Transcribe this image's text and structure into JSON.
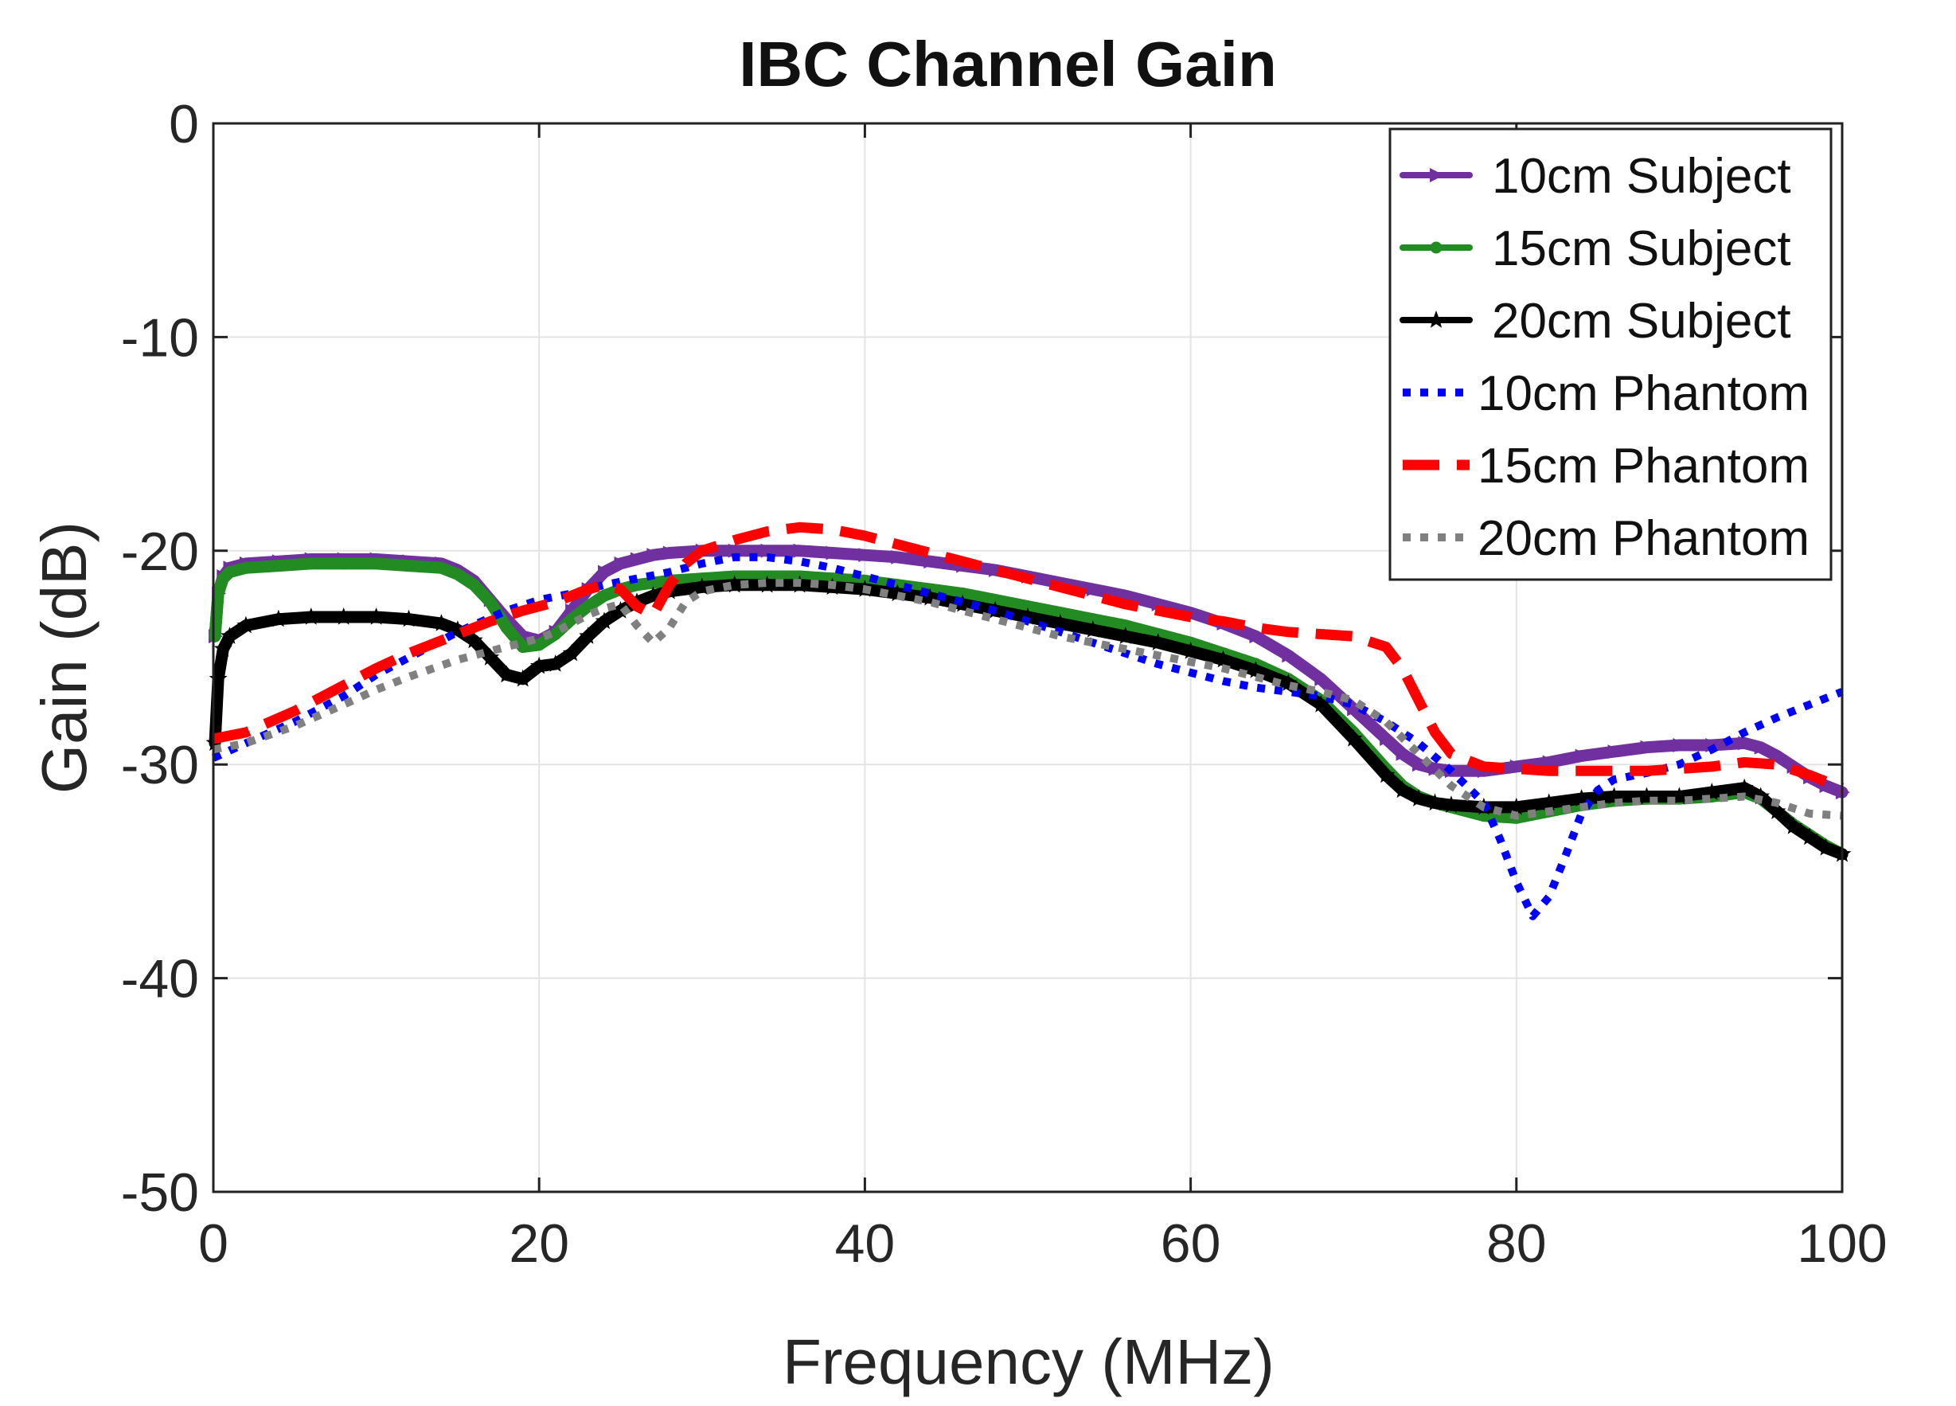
{
  "chart_data": {
    "type": "line",
    "title": "IBC Channel Gain",
    "xlabel": "Frequency (MHz)",
    "ylabel": "Gain (dB)",
    "xlim": [
      0,
      100
    ],
    "ylim": [
      -50,
      0
    ],
    "xticks": [
      0,
      20,
      40,
      60,
      80,
      100
    ],
    "yticks": [
      0,
      -10,
      -20,
      -30,
      -40,
      -50
    ],
    "grid": true,
    "legend_position": "top-right",
    "series": [
      {
        "name": "10cm Subject",
        "color": "#7030A0",
        "style": "solid",
        "marker": "triangle-right",
        "x": [
          0.1,
          0.3,
          0.6,
          1,
          2,
          4,
          6,
          8,
          10,
          12,
          14,
          15,
          16,
          17,
          18,
          19,
          20,
          21,
          22,
          23,
          24,
          25,
          26,
          27,
          28,
          30,
          32,
          34,
          36,
          38,
          40,
          42,
          44,
          46,
          48,
          50,
          52,
          54,
          56,
          58,
          60,
          62,
          64,
          66,
          68,
          70,
          72,
          73,
          74,
          75,
          76,
          78,
          80,
          82,
          84,
          86,
          88,
          90,
          92,
          94,
          95,
          96,
          97,
          98,
          99,
          100
        ],
        "y": [
          -24,
          -22,
          -21.2,
          -20.8,
          -20.6,
          -20.5,
          -20.4,
          -20.4,
          -20.4,
          -20.5,
          -20.6,
          -20.9,
          -21.4,
          -22.3,
          -23.2,
          -24,
          -24.2,
          -23.8,
          -22.8,
          -21.8,
          -21,
          -20.6,
          -20.4,
          -20.2,
          -20.1,
          -20,
          -20,
          -20,
          -20,
          -20.1,
          -20.2,
          -20.3,
          -20.5,
          -20.7,
          -20.9,
          -21.2,
          -21.5,
          -21.8,
          -22.1,
          -22.5,
          -22.9,
          -23.4,
          -24,
          -24.9,
          -26,
          -27.4,
          -28.8,
          -29.5,
          -30,
          -30.2,
          -30.3,
          -30.3,
          -30.1,
          -29.9,
          -29.6,
          -29.4,
          -29.2,
          -29.1,
          -29.1,
          -29,
          -29.2,
          -29.6,
          -30.1,
          -30.6,
          -31,
          -31.3
        ]
      },
      {
        "name": "15cm Subject",
        "color": "#228B22",
        "style": "solid",
        "marker": "circle",
        "x": [
          0.1,
          0.3,
          0.6,
          1,
          2,
          4,
          6,
          8,
          10,
          12,
          14,
          15,
          16,
          17,
          18,
          19,
          20,
          21,
          22,
          23,
          24,
          25,
          26,
          27,
          28,
          30,
          32,
          34,
          36,
          38,
          40,
          42,
          44,
          46,
          48,
          50,
          52,
          54,
          56,
          58,
          60,
          62,
          64,
          66,
          68,
          70,
          72,
          73,
          74,
          75,
          76,
          78,
          80,
          82,
          84,
          86,
          88,
          90,
          92,
          94,
          95,
          96,
          97,
          98,
          99,
          100
        ],
        "y": [
          -24,
          -22,
          -21.3,
          -21,
          -20.8,
          -20.7,
          -20.6,
          -20.6,
          -20.6,
          -20.7,
          -20.8,
          -21.1,
          -21.6,
          -22.4,
          -23.6,
          -24.5,
          -24.4,
          -23.9,
          -23.2,
          -22.6,
          -22.1,
          -21.8,
          -21.6,
          -21.5,
          -21.4,
          -21.3,
          -21.2,
          -21.2,
          -21.2,
          -21.3,
          -21.4,
          -21.6,
          -21.8,
          -22,
          -22.3,
          -22.6,
          -22.9,
          -23.2,
          -23.5,
          -23.9,
          -24.3,
          -24.8,
          -25.3,
          -26,
          -27,
          -28.5,
          -30.2,
          -31,
          -31.5,
          -31.8,
          -32,
          -32.4,
          -32.5,
          -32.2,
          -31.9,
          -31.7,
          -31.6,
          -31.6,
          -31.5,
          -31.3,
          -31.6,
          -32.2,
          -32.8,
          -33.3,
          -33.8,
          -34.2
        ]
      },
      {
        "name": "20cm Subject",
        "color": "#000000",
        "style": "solid",
        "marker": "star",
        "x": [
          0.1,
          0.3,
          0.6,
          1,
          2,
          4,
          6,
          8,
          10,
          12,
          14,
          15,
          16,
          17,
          18,
          19,
          20,
          21,
          22,
          23,
          24,
          25,
          26,
          27,
          28,
          30,
          32,
          34,
          36,
          38,
          40,
          42,
          44,
          46,
          48,
          50,
          52,
          54,
          56,
          58,
          60,
          62,
          64,
          66,
          68,
          70,
          72,
          73,
          74,
          75,
          76,
          78,
          80,
          82,
          84,
          86,
          88,
          90,
          92,
          94,
          95,
          96,
          97,
          98,
          99,
          100
        ],
        "y": [
          -29,
          -26,
          -24.6,
          -24,
          -23.5,
          -23.2,
          -23.1,
          -23.1,
          -23.1,
          -23.2,
          -23.4,
          -23.7,
          -24.2,
          -25,
          -25.8,
          -26,
          -25.4,
          -25.3,
          -24.8,
          -24,
          -23.3,
          -22.8,
          -22.4,
          -22.1,
          -21.9,
          -21.7,
          -21.6,
          -21.6,
          -21.6,
          -21.7,
          -21.8,
          -22,
          -22.2,
          -22.5,
          -22.8,
          -23.1,
          -23.4,
          -23.7,
          -24,
          -24.3,
          -24.7,
          -25.1,
          -25.6,
          -26.2,
          -27.2,
          -28.8,
          -30.5,
          -31.2,
          -31.6,
          -31.8,
          -31.9,
          -32,
          -32,
          -31.8,
          -31.6,
          -31.5,
          -31.5,
          -31.5,
          -31.3,
          -31.1,
          -31.5,
          -32.2,
          -32.9,
          -33.4,
          -33.9,
          -34.2
        ]
      },
      {
        "name": "10cm Phantom",
        "color": "#0000FF",
        "style": "dotted",
        "marker": "none",
        "x": [
          0,
          2,
          5,
          8,
          10,
          12,
          15,
          18,
          20,
          22,
          24,
          26,
          28,
          30,
          32,
          34,
          36,
          38,
          40,
          42,
          44,
          46,
          48,
          50,
          52,
          54,
          56,
          58,
          60,
          62,
          64,
          66,
          68,
          70,
          72,
          74,
          76,
          78,
          79,
          80,
          81,
          82,
          83,
          84,
          85,
          86,
          88,
          90,
          92,
          94,
          96,
          98,
          100
        ],
        "y": [
          -29.7,
          -29,
          -28,
          -26.8,
          -25.8,
          -25,
          -23.8,
          -22.8,
          -22.3,
          -22,
          -21.6,
          -21.3,
          -21,
          -20.6,
          -20.3,
          -20.3,
          -20.5,
          -20.8,
          -21.2,
          -21.6,
          -22,
          -22.4,
          -22.8,
          -23.3,
          -23.8,
          -24.3,
          -24.8,
          -25.3,
          -25.7,
          -26.1,
          -26.4,
          -26.6,
          -26.8,
          -27.2,
          -28,
          -29,
          -30.3,
          -31.8,
          -33.5,
          -35.5,
          -37.1,
          -36.2,
          -34.3,
          -32.3,
          -31.2,
          -30.7,
          -30.4,
          -30,
          -29.3,
          -28.5,
          -27.8,
          -27.2,
          -26.6
        ]
      },
      {
        "name": "15cm Phantom",
        "color": "#FF0000",
        "style": "dashed",
        "marker": "none",
        "x": [
          0,
          2,
          5,
          8,
          10,
          12,
          15,
          17,
          19,
          21,
          22,
          23,
          24,
          25,
          26,
          27,
          28,
          29,
          30,
          32,
          34,
          36,
          38,
          40,
          42,
          44,
          46,
          48,
          50,
          52,
          54,
          56,
          58,
          60,
          62,
          64,
          66,
          68,
          70,
          72,
          73,
          74,
          75,
          76,
          78,
          80,
          82,
          84,
          86,
          88,
          90,
          92,
          94,
          96,
          98,
          100
        ],
        "y": [
          -28.8,
          -28.5,
          -27.5,
          -26.3,
          -25.5,
          -24.8,
          -23.9,
          -23.3,
          -22.8,
          -22.4,
          -22.1,
          -21.8,
          -21.6,
          -21.8,
          -22.6,
          -23,
          -21.6,
          -20.6,
          -20,
          -19.5,
          -19.1,
          -18.9,
          -19,
          -19.3,
          -19.7,
          -20.1,
          -20.5,
          -20.9,
          -21.3,
          -21.7,
          -22.1,
          -22.5,
          -22.8,
          -23.1,
          -23.3,
          -23.6,
          -23.8,
          -23.9,
          -24,
          -24.5,
          -25.5,
          -27,
          -28.5,
          -29.5,
          -30.1,
          -30.2,
          -30.3,
          -30.3,
          -30.3,
          -30.3,
          -30.2,
          -30.1,
          -29.9,
          -30,
          -30.5,
          -31.1
        ]
      },
      {
        "name": "20cm Phantom",
        "color": "#808080",
        "style": "dotted",
        "marker": "none",
        "x": [
          0,
          2,
          5,
          8,
          10,
          12,
          15,
          17,
          19,
          20,
          21,
          22,
          23,
          24,
          25,
          26,
          27,
          28,
          29,
          30,
          32,
          34,
          36,
          38,
          40,
          42,
          44,
          46,
          48,
          50,
          52,
          54,
          56,
          58,
          60,
          62,
          64,
          66,
          68,
          70,
          72,
          74,
          76,
          78,
          80,
          82,
          84,
          86,
          88,
          90,
          92,
          94,
          96,
          98,
          100
        ],
        "y": [
          -29.3,
          -29,
          -28.2,
          -27.2,
          -26.5,
          -25.9,
          -25.1,
          -24.7,
          -24.3,
          -24.1,
          -23.8,
          -23.4,
          -23,
          -22.7,
          -22.5,
          -23.5,
          -24.3,
          -23.6,
          -22.4,
          -21.9,
          -21.6,
          -21.5,
          -21.5,
          -21.6,
          -21.8,
          -22.1,
          -22.4,
          -22.8,
          -23.2,
          -23.6,
          -24,
          -24.3,
          -24.6,
          -24.9,
          -25.2,
          -25.5,
          -25.9,
          -26.3,
          -26.6,
          -27,
          -28,
          -29.5,
          -31,
          -32,
          -32.4,
          -32.2,
          -32,
          -31.8,
          -31.7,
          -31.7,
          -31.6,
          -31.5,
          -31.8,
          -32.3,
          -32.4
        ]
      }
    ]
  }
}
